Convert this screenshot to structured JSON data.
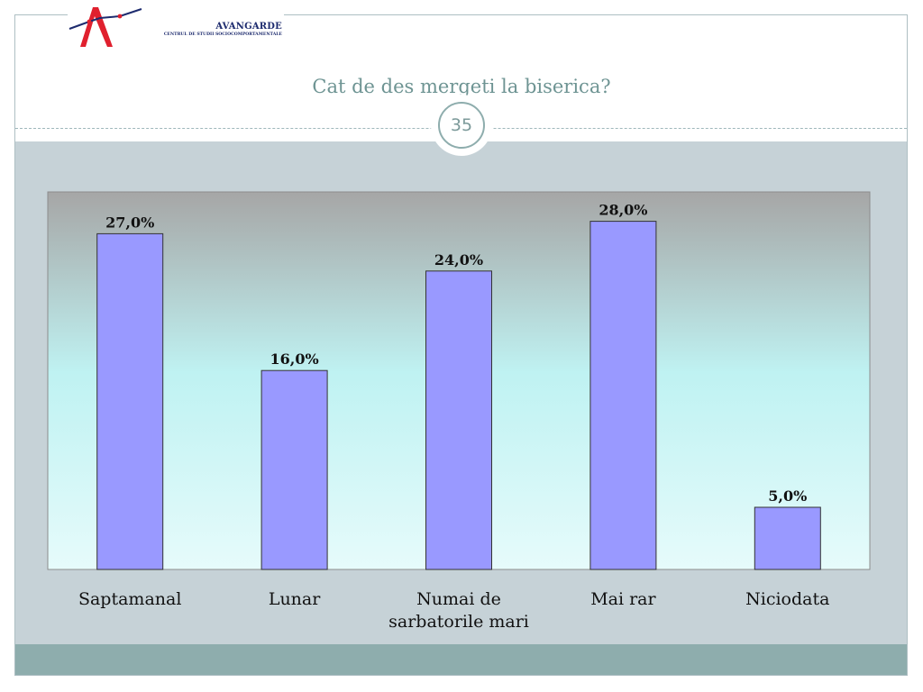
{
  "logo": {
    "brand": "AVANGARDE",
    "subtitle": "CENTRUL DE STUDII SOCIOCOMPORTAMENTALE"
  },
  "slide": {
    "title": "Cat de des mergeti la biserica?",
    "page_number": "35"
  },
  "colors": {
    "bar_fill": "#9999ff",
    "plot_top": "#a6a6a6",
    "plot_mid": "#bff2f2",
    "plot_bottom": "#e6fbfb",
    "title_text": "#6e9493",
    "band": "#c6d2d7",
    "footer": "#8eadad"
  },
  "chart_data": {
    "type": "bar",
    "categories": [
      [
        "Saptamanal"
      ],
      [
        "Lunar"
      ],
      [
        "Numai de",
        "sarbatorile mari"
      ],
      [
        "Mai rar"
      ],
      [
        "Niciodata"
      ]
    ],
    "values": [
      27.0,
      16.0,
      24.0,
      28.0,
      5.0
    ],
    "data_labels": [
      "27,0%",
      "16,0%",
      "24,0%",
      "28,0%",
      "5,0%"
    ],
    "ylim": [
      0,
      30
    ],
    "grid": false,
    "legend": "none"
  }
}
